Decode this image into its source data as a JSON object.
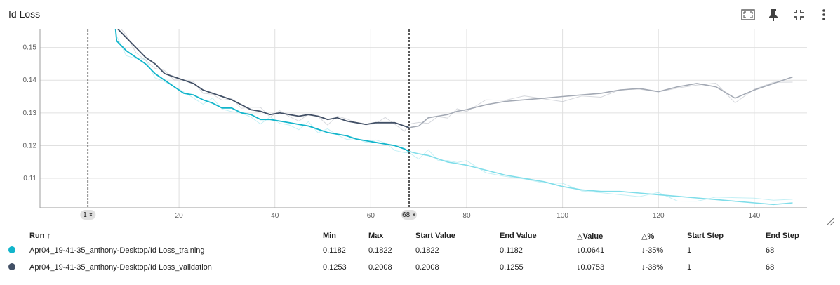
{
  "title": "Id Loss",
  "toolbar": {
    "icons": [
      "fullscreen-icon",
      "pin-icon",
      "collapse-icon",
      "more-vert-icon"
    ]
  },
  "colors": {
    "training": "#12b5cb",
    "training_light": "#7fdde9",
    "validation": "#425066",
    "validation_light": "#a3a9b4",
    "grid": "#e0e0e0"
  },
  "chart_data": {
    "type": "line",
    "title": "Id Loss",
    "xlabel": "",
    "ylabel": "",
    "xlim": [
      -9,
      151
    ],
    "ylim": [
      0.101,
      0.1555
    ],
    "xticks": [
      20,
      40,
      60,
      80,
      100,
      120,
      140
    ],
    "yticks": [
      0.11,
      0.12,
      0.13,
      0.14,
      0.15
    ],
    "grid": true,
    "selection": {
      "start_step": 1,
      "end_step": 68,
      "start_label": "1",
      "end_label": "68"
    },
    "series": [
      {
        "name": "Apr04_19-41-35_anthony-Desktop/Id Loss_training",
        "color": "#12b5cb",
        "x": [
          5,
          7,
          9,
          11,
          13,
          15,
          17,
          19,
          21,
          23,
          25,
          27,
          29,
          31,
          33,
          35,
          37,
          39,
          41,
          43,
          45,
          47,
          49,
          51,
          53,
          55,
          57,
          59,
          61,
          63,
          65,
          67,
          68,
          70,
          72,
          74,
          76,
          78,
          80,
          84,
          88,
          92,
          96,
          100,
          104,
          108,
          112,
          116,
          120,
          124,
          128,
          132,
          136,
          140,
          144,
          148
        ],
        "y": [
          0.1822,
          0.152,
          0.149,
          0.147,
          0.145,
          0.142,
          0.14,
          0.138,
          0.136,
          0.1355,
          0.134,
          0.133,
          0.1315,
          0.1315,
          0.13,
          0.1295,
          0.128,
          0.128,
          0.1275,
          0.127,
          0.1265,
          0.126,
          0.125,
          0.124,
          0.1235,
          0.123,
          0.122,
          0.1215,
          0.121,
          0.1205,
          0.12,
          0.119,
          0.1182,
          0.1175,
          0.117,
          0.116,
          0.115,
          0.1145,
          0.114,
          0.1125,
          0.111,
          0.11,
          0.109,
          0.1075,
          0.1065,
          0.106,
          0.106,
          0.1055,
          0.105,
          0.1045,
          0.104,
          0.1035,
          0.103,
          0.1025,
          0.102,
          0.1025
        ]
      },
      {
        "name": "Apr04_19-41-35_anthony-Desktop/Id Loss_validation",
        "color": "#425066",
        "x": [
          5,
          7,
          9,
          11,
          13,
          15,
          17,
          19,
          21,
          23,
          25,
          27,
          29,
          31,
          33,
          35,
          37,
          39,
          41,
          43,
          45,
          47,
          49,
          51,
          53,
          55,
          57,
          59,
          61,
          63,
          65,
          67,
          68,
          70,
          72,
          74,
          76,
          78,
          80,
          84,
          88,
          92,
          96,
          100,
          104,
          108,
          112,
          116,
          120,
          124,
          128,
          132,
          136,
          140,
          144,
          148
        ],
        "y": [
          0.2008,
          0.156,
          0.153,
          0.15,
          0.147,
          0.145,
          0.142,
          0.141,
          0.14,
          0.139,
          0.137,
          0.136,
          0.135,
          0.134,
          0.1325,
          0.131,
          0.1305,
          0.1295,
          0.13,
          0.1295,
          0.129,
          0.1295,
          0.129,
          0.128,
          0.1285,
          0.1275,
          0.127,
          0.1265,
          0.127,
          0.127,
          0.127,
          0.126,
          0.1255,
          0.126,
          0.1285,
          0.129,
          0.1295,
          0.1305,
          0.131,
          0.1325,
          0.1335,
          0.134,
          0.1345,
          0.135,
          0.1355,
          0.136,
          0.137,
          0.1375,
          0.1365,
          0.138,
          0.139,
          0.138,
          0.1345,
          0.137,
          0.139,
          0.141
        ]
      }
    ]
  },
  "table": {
    "headers": [
      "Run ↑",
      "Min",
      "Max",
      "Start Value",
      "End Value",
      "△Value",
      "△%",
      "Start Step",
      "End Step"
    ],
    "rows": [
      {
        "color": "#12b5cb",
        "run": "Apr04_19-41-35_anthony-Desktop/Id Loss_training",
        "min": "0.1182",
        "max": "0.1822",
        "start_value": "0.1822",
        "end_value": "0.1182",
        "delta_value": "↓0.0641",
        "delta_pct": "↓-35%",
        "start_step": "1",
        "end_step": "68"
      },
      {
        "color": "#425066",
        "run": "Apr04_19-41-35_anthony-Desktop/Id Loss_validation",
        "min": "0.1253",
        "max": "0.2008",
        "start_value": "0.2008",
        "end_value": "0.1255",
        "delta_value": "↓0.0753",
        "delta_pct": "↓-38%",
        "start_step": "1",
        "end_step": "68"
      }
    ]
  }
}
